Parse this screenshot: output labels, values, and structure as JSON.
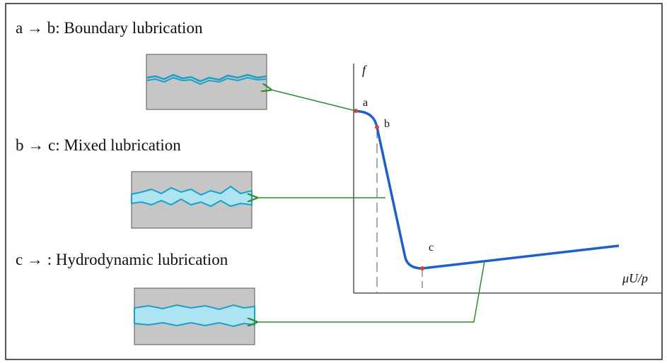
{
  "labels": [
    "a → b: Boundary lubrication",
    "b → c: Mixed lubrication",
    "c → :  Hydrodynamic lubrication"
  ],
  "axes": {
    "y": "f",
    "x": "μU/p"
  },
  "points": [
    "a",
    "b",
    "c"
  ]
}
